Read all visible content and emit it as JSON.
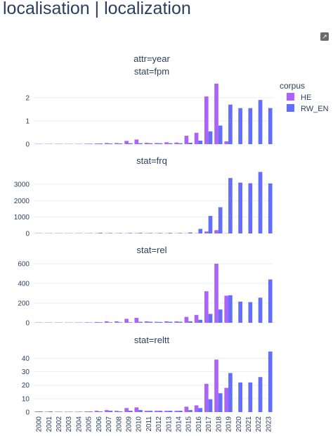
{
  "page": {
    "title": "localisation | localization",
    "expand_icon": "expand-arrow-icon",
    "expand_glyph": "↗"
  },
  "chart_data": {
    "type": "bar",
    "layout": "faceted-rows",
    "facet_header": "attr=year",
    "legend": {
      "title": "corpus",
      "placement": "top-right",
      "entries": [
        {
          "name": "HE",
          "color": "#ab63fa"
        },
        {
          "name": "RW_EN",
          "color": "#636efa"
        }
      ]
    },
    "categories": [
      "2000",
      "2001",
      "2002",
      "2003",
      "2004",
      "2005",
      "2006",
      "2007",
      "2008",
      "2009",
      "2010",
      "2011",
      "2012",
      "2013",
      "2014",
      "2015",
      "2016",
      "2017",
      "2018",
      "2019",
      "2020",
      "2021",
      "2022",
      "2023"
    ],
    "panels": [
      {
        "title": "stat=fpm",
        "ylim": [
          0,
          2.75
        ],
        "yticks": [
          0,
          1,
          2
        ],
        "series": [
          {
            "name": "HE",
            "values": [
              0.01,
              0.01,
              0.01,
              0.01,
              0.01,
              0.02,
              0.03,
              0.05,
              0.05,
              0.14,
              0.2,
              0.06,
              0.05,
              0.08,
              0.07,
              0.36,
              0.49,
              2.05,
              2.6,
              0.12,
              null,
              null,
              null,
              null
            ]
          },
          {
            "name": "RW_EN",
            "values": [
              0.01,
              0.01,
              0.01,
              0.01,
              0.01,
              0.02,
              0.03,
              0.03,
              0.03,
              0.04,
              0.04,
              0.04,
              0.04,
              0.04,
              0.04,
              0.06,
              0.15,
              0.55,
              0.8,
              1.7,
              1.55,
              1.55,
              1.9,
              1.55
            ]
          }
        ]
      },
      {
        "title": "stat=frq",
        "ylim": [
          0,
          3900
        ],
        "yticks": [
          0,
          1000,
          2000,
          3000
        ],
        "series": [
          {
            "name": "HE",
            "values": [
              2,
              2,
              2,
              2,
              2,
              3,
              5,
              8,
              8,
              15,
              20,
              8,
              6,
              8,
              8,
              15,
              18,
              120,
              200,
              10,
              null,
              null,
              null,
              null
            ]
          },
          {
            "name": "RW_EN",
            "values": [
              5,
              5,
              5,
              5,
              10,
              20,
              40,
              30,
              25,
              30,
              35,
              30,
              30,
              35,
              30,
              60,
              280,
              1070,
              1600,
              3380,
              3100,
              3060,
              3750,
              3050
            ]
          }
        ]
      },
      {
        "title": "stat=rel",
        "ylim": [
          0,
          650
        ],
        "yticks": [
          0,
          200,
          400,
          600
        ],
        "series": [
          {
            "name": "HE",
            "values": [
              3,
              3,
              3,
              3,
              3,
              5,
              8,
              15,
              15,
              40,
              50,
              15,
              10,
              15,
              15,
              60,
              80,
              320,
              600,
              275,
              null,
              null,
              null,
              null
            ]
          },
          {
            "name": "RW_EN",
            "values": [
              2,
              2,
              2,
              2,
              2,
              3,
              5,
              5,
              5,
              5,
              10,
              10,
              8,
              10,
              10,
              15,
              30,
              90,
              135,
              280,
              215,
              210,
              255,
              440
            ]
          }
        ]
      },
      {
        "title": "stat=reltt",
        "ylim": [
          0,
          47
        ],
        "yticks": [
          0,
          10,
          20,
          30,
          40
        ],
        "series": [
          {
            "name": "HE",
            "values": [
              0.5,
              0.3,
              0.3,
              0.3,
              0.3,
              0.5,
              1,
              1.5,
              1,
              3,
              3.5,
              1,
              1,
              1,
              1,
              4,
              5,
              21,
              39,
              18,
              null,
              null,
              null,
              null
            ]
          },
          {
            "name": "RW_EN",
            "values": [
              0.5,
              0.5,
              0.3,
              0.3,
              0.3,
              0.5,
              0.5,
              1,
              0.5,
              1,
              1.5,
              1,
              1,
              1,
              1,
              1.5,
              3,
              9.5,
              14,
              29,
              22,
              22,
              26,
              45
            ]
          }
        ]
      }
    ]
  }
}
